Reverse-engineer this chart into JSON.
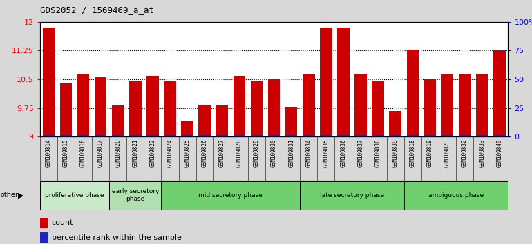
{
  "title": "GDS2052 / 1569469_a_at",
  "samples": [
    "GSM109814",
    "GSM109815",
    "GSM109816",
    "GSM109817",
    "GSM109820",
    "GSM109821",
    "GSM109822",
    "GSM109824",
    "GSM109825",
    "GSM109826",
    "GSM109827",
    "GSM109828",
    "GSM109829",
    "GSM109830",
    "GSM109831",
    "GSM109834",
    "GSM109835",
    "GSM109836",
    "GSM109837",
    "GSM109838",
    "GSM109839",
    "GSM109818",
    "GSM109819",
    "GSM109823",
    "GSM109832",
    "GSM109833",
    "GSM109840"
  ],
  "red_values": [
    11.85,
    10.4,
    10.65,
    10.55,
    9.82,
    10.45,
    10.6,
    10.45,
    9.4,
    9.83,
    9.82,
    10.6,
    10.45,
    10.5,
    9.78,
    10.65,
    11.85,
    11.85,
    10.65,
    10.45,
    9.68,
    11.28,
    10.5,
    10.65,
    10.65,
    10.65,
    11.25
  ],
  "blue_values": [
    0.04,
    0.04,
    0.04,
    0.04,
    0.04,
    0.04,
    0.04,
    0.04,
    0.04,
    0.04,
    0.04,
    0.04,
    0.04,
    0.04,
    0.04,
    0.04,
    0.04,
    0.04,
    0.04,
    0.04,
    0.04,
    0.04,
    0.04,
    0.04,
    0.04,
    0.04,
    0.04
  ],
  "phase_groups": [
    {
      "label": "proliferative phase",
      "start": 0,
      "end": 4,
      "color": "#c8eac8"
    },
    {
      "label": "early secretory\nphase",
      "start": 4,
      "end": 7,
      "color": "#b0e0b0"
    },
    {
      "label": "mid secretory phase",
      "start": 7,
      "end": 15,
      "color": "#70d070"
    },
    {
      "label": "late secretory phase",
      "start": 15,
      "end": 21,
      "color": "#70d070"
    },
    {
      "label": "ambiguous phase",
      "start": 21,
      "end": 27,
      "color": "#70d070"
    }
  ],
  "y_min": 9.0,
  "y_max": 12.0,
  "y_ticks_left": [
    9.0,
    9.75,
    10.5,
    11.25,
    12.0
  ],
  "y_ticks_right": [
    0,
    25,
    50,
    75,
    100
  ],
  "y_right_labels": [
    "0",
    "25",
    "50",
    "75",
    "100%"
  ],
  "bar_color_red": "#cc0000",
  "bar_color_blue": "#2222cc",
  "background_color": "#d8d8d8",
  "tick_area_color": "#cccccc",
  "plot_bg_color": "#ffffff"
}
